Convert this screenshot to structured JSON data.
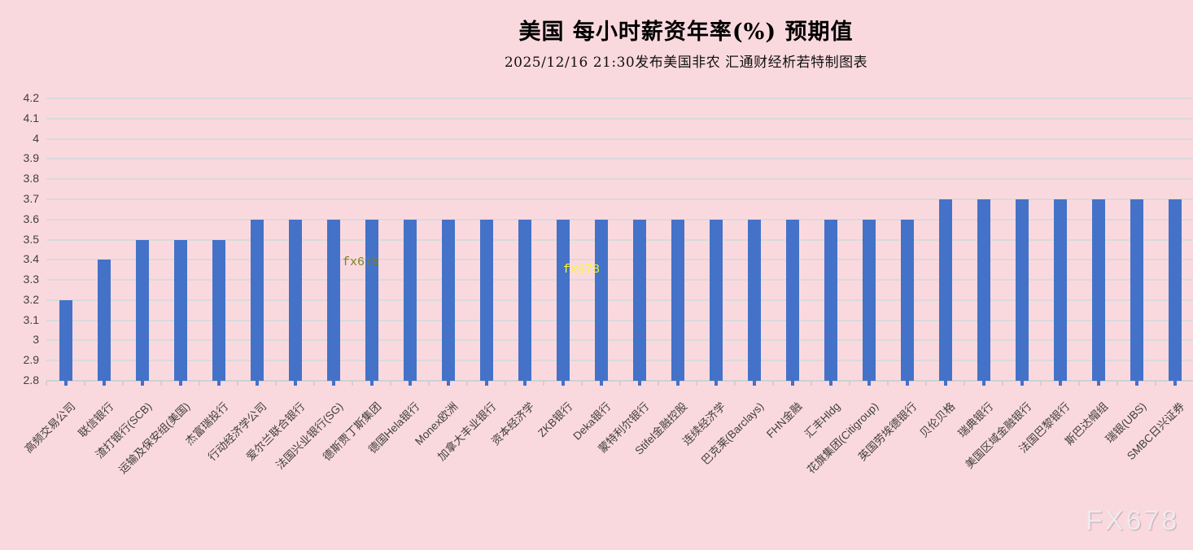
{
  "header": {
    "title": "美国 每小时薪资年率(%) 预期值",
    "subtitle": "2025/12/16 21:30发布美国非农 汇通财经析若特制图表"
  },
  "watermarks": {
    "inline_left": "fx678",
    "inline_center": "fx678",
    "corner": "FX678"
  },
  "colors": {
    "background": "#fad9de",
    "bar": "#4472c8",
    "gridline": "#d9dadc",
    "axis_label": "#3f3f3f",
    "watermark_olive": "#7e7d1f",
    "watermark_yellow": "#fafa26",
    "watermark_corner": "#eceaee"
  },
  "chart_data": {
    "type": "bar",
    "title": "美国 每小时薪资年率(%) 预期值",
    "subtitle": "2025/12/16 21:30发布美国非农 汇通财经析若特制图表",
    "xlabel": "",
    "ylabel": "",
    "ylim": [
      2.8,
      4.2
    ],
    "ytick_interval": 0.1,
    "yticks": [
      "4.2",
      "4.1",
      "4",
      "3.9",
      "3.8",
      "3.7",
      "3.6",
      "3.5",
      "3.4",
      "3.3",
      "3.2",
      "3.1",
      "3",
      "2.9",
      "2.8"
    ],
    "grid": true,
    "legend_position": "none",
    "categories": [
      "高频交易公司",
      "联信银行",
      "渣打银行(SCB)",
      "运输及保安组(美国)",
      "杰富瑞投行",
      "行动经济学公司",
      "爱尔兰联合银行",
      "法国兴业银行(SG)",
      "德斯贾丁斯集团",
      "德国Hela银行",
      "Monex欧洲",
      "加拿大丰业银行",
      "资本经济学",
      "ZKB银行",
      "Deka银行",
      "蒙特利尔银行",
      "Stifel金融控股",
      "连续经济学",
      "巴克莱(Barclays)",
      "FHN金融",
      "汇丰Hldg",
      "花旗集团(Citigroup)",
      "英国劳埃德银行",
      "贝伦贝格",
      "瑞典银行",
      "美国区域金融银行",
      "法国巴黎银行",
      "斯巴达帽组",
      "瑞银(UBS)",
      "SMBC日兴证券"
    ],
    "values": [
      3.2,
      3.4,
      3.5,
      3.5,
      3.5,
      3.6,
      3.6,
      3.6,
      3.6,
      3.6,
      3.6,
      3.6,
      3.6,
      3.6,
      3.6,
      3.6,
      3.6,
      3.6,
      3.6,
      3.6,
      3.6,
      3.6,
      3.6,
      3.7,
      3.7,
      3.7,
      3.7,
      3.7,
      3.7,
      3.7
    ]
  }
}
